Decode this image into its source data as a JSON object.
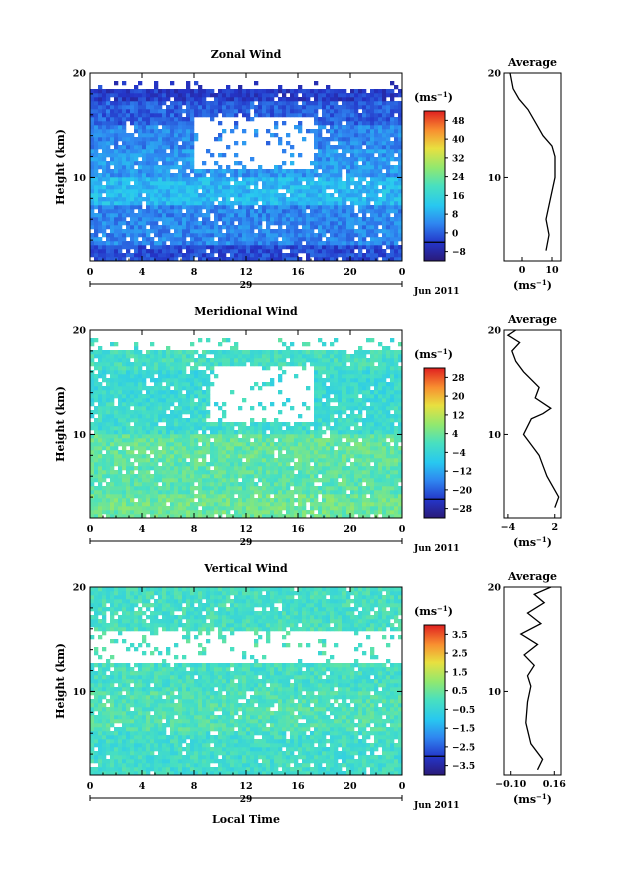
{
  "chart_data": [
    {
      "type": "heatmap",
      "title": "Zonal Wind",
      "ylabel": "Height (km)",
      "xlabel": "",
      "ylim": [
        2,
        20
      ],
      "xlim": [
        0,
        24
      ],
      "x_ticks": [
        "0",
        "4",
        "8",
        "12",
        "16",
        "20",
        "0"
      ],
      "y_ticks": [
        "10",
        "20"
      ],
      "day_label": "29",
      "date_label": "Jun 2011",
      "colorbar": {
        "unit_label": "(ms",
        "unit_sup": "−1",
        "ticks": [
          "48",
          "40",
          "32",
          "24",
          "16",
          "8",
          "0",
          "−8"
        ],
        "range": [
          -12,
          52
        ]
      },
      "field": {
        "bands": [
          {
            "z_from": 2,
            "z_to": 3.5,
            "value": -2
          },
          {
            "z_from": 3.5,
            "z_to": 7,
            "value": 4
          },
          {
            "z_from": 7,
            "z_to": 10,
            "value": 10
          },
          {
            "z_from": 10,
            "z_to": 12.5,
            "value": 6
          },
          {
            "z_from": 12.5,
            "z_to": 15,
            "value": 4
          },
          {
            "z_from": 15,
            "z_to": 17,
            "value": 0
          },
          {
            "z_from": 17,
            "z_to": 18.2,
            "value": -4
          }
        ],
        "missing_zone": {
          "z_from": 10.5,
          "z_to": 15.5,
          "t_from": 8,
          "t_to": 17
        }
      },
      "average_profile": {
        "title": "Average",
        "xlabel": "(ms",
        "xlabel_sup": "−1",
        "x_ticks": [
          "0",
          "10"
        ],
        "y_ticks": [
          "10",
          "20"
        ],
        "xlim": [
          -6,
          13
        ],
        "ylim": [
          2,
          20
        ],
        "points": [
          [
            8,
            3
          ],
          [
            9,
            4.5
          ],
          [
            8,
            6
          ],
          [
            9.5,
            8
          ],
          [
            11,
            10
          ],
          [
            11,
            12
          ],
          [
            10,
            13
          ],
          [
            7,
            14
          ],
          [
            5,
            15
          ],
          [
            2,
            16.5
          ],
          [
            -1,
            17.5
          ],
          [
            -3,
            18.5
          ],
          [
            -4,
            20
          ]
        ]
      }
    },
    {
      "type": "heatmap",
      "title": "Meridional Wind",
      "ylabel": "Height (km)",
      "xlabel": "",
      "ylim": [
        2,
        20
      ],
      "xlim": [
        0,
        24
      ],
      "x_ticks": [
        "0",
        "4",
        "8",
        "12",
        "16",
        "20",
        "0"
      ],
      "y_ticks": [
        "10",
        "20"
      ],
      "day_label": "29",
      "date_label": "Jun 2011",
      "colorbar": {
        "unit_label": "(ms",
        "unit_sup": "−1",
        "ticks": [
          "28",
          "20",
          "12",
          "4",
          "−4",
          "−12",
          "−20",
          "−28"
        ],
        "range": [
          -32,
          32
        ]
      },
      "field": {
        "bands": [
          {
            "z_from": 2,
            "z_to": 4,
            "value": 4
          },
          {
            "z_from": 4,
            "z_to": 7,
            "value": 2
          },
          {
            "z_from": 7,
            "z_to": 10,
            "value": 3
          },
          {
            "z_from": 10,
            "z_to": 13,
            "value": -2
          },
          {
            "z_from": 13,
            "z_to": 16,
            "value": -3
          },
          {
            "z_from": 16,
            "z_to": 18,
            "value": -1
          }
        ],
        "missing_zone": {
          "z_from": 11,
          "z_to": 16.5,
          "t_from": 9,
          "t_to": 17
        }
      },
      "average_profile": {
        "title": "Average",
        "xlabel": "(ms",
        "xlabel_sup": "−1",
        "x_ticks": [
          "−4",
          "2"
        ],
        "y_ticks": [
          "10",
          "20"
        ],
        "xlim": [
          -4.5,
          2.8
        ],
        "ylim": [
          2,
          20
        ],
        "points": [
          [
            2,
            3
          ],
          [
            2.5,
            4
          ],
          [
            1,
            6
          ],
          [
            0.5,
            7
          ],
          [
            0,
            8
          ],
          [
            -1,
            9
          ],
          [
            -2,
            10
          ],
          [
            -1,
            11.5
          ],
          [
            0.5,
            12
          ],
          [
            1.5,
            12.5
          ],
          [
            -0.5,
            13.5
          ],
          [
            0,
            14.5
          ],
          [
            -2,
            16
          ],
          [
            -3,
            17
          ],
          [
            -3.5,
            18
          ],
          [
            -2.5,
            18.8
          ],
          [
            -4,
            19.5
          ],
          [
            -3,
            20
          ]
        ]
      }
    },
    {
      "type": "heatmap",
      "title": "Vertical Wind",
      "ylabel": "Height (km)",
      "xlabel": "Local Time",
      "ylim": [
        2,
        20
      ],
      "xlim": [
        0,
        24
      ],
      "x_ticks": [
        "0",
        "4",
        "8",
        "12",
        "16",
        "20",
        "0"
      ],
      "y_ticks": [
        "10",
        "20"
      ],
      "day_label": "29",
      "date_label": "Jun 2011",
      "colorbar": {
        "unit_label": "(ms",
        "unit_sup": "−1",
        "ticks": [
          "3.5",
          "2.5",
          "1.5",
          "0.5",
          "−0.5",
          "−1.5",
          "−2.5",
          "−3.5"
        ],
        "range": [
          -4,
          4
        ]
      },
      "field": {
        "bands": [
          {
            "z_from": 2,
            "z_to": 6,
            "value": -0.2
          },
          {
            "z_from": 6,
            "z_to": 10,
            "value": 0.1
          },
          {
            "z_from": 10,
            "z_to": 13,
            "value": -0.1
          },
          {
            "z_from": 13,
            "z_to": 16,
            "value": 0
          },
          {
            "z_from": 16,
            "z_to": 20,
            "value": -0.1
          }
        ],
        "missing_zone": {
          "z_from": 12.5,
          "z_to": 15.5,
          "t_from": 0,
          "t_to": 24
        }
      },
      "average_profile": {
        "title": "Average",
        "xlabel": "(ms",
        "xlabel_sup": "−1",
        "x_ticks": [
          "−0.10",
          "0.16"
        ],
        "y_ticks": [
          "10",
          "20"
        ],
        "xlim": [
          -0.14,
          0.2
        ],
        "ylim": [
          2,
          20
        ],
        "points": [
          [
            0.06,
            2.5
          ],
          [
            0.09,
            3.5
          ],
          [
            0.02,
            5
          ],
          [
            -0.01,
            7
          ],
          [
            0.0,
            9
          ],
          [
            0.02,
            10.5
          ],
          [
            0.0,
            11.5
          ],
          [
            0.04,
            12.5
          ],
          [
            -0.02,
            13.5
          ],
          [
            0.06,
            14.5
          ],
          [
            -0.04,
            15.5
          ],
          [
            0.08,
            16.5
          ],
          [
            0.0,
            17.5
          ],
          [
            0.1,
            18.5
          ],
          [
            0.04,
            19.3
          ],
          [
            0.14,
            20
          ]
        ]
      }
    }
  ]
}
